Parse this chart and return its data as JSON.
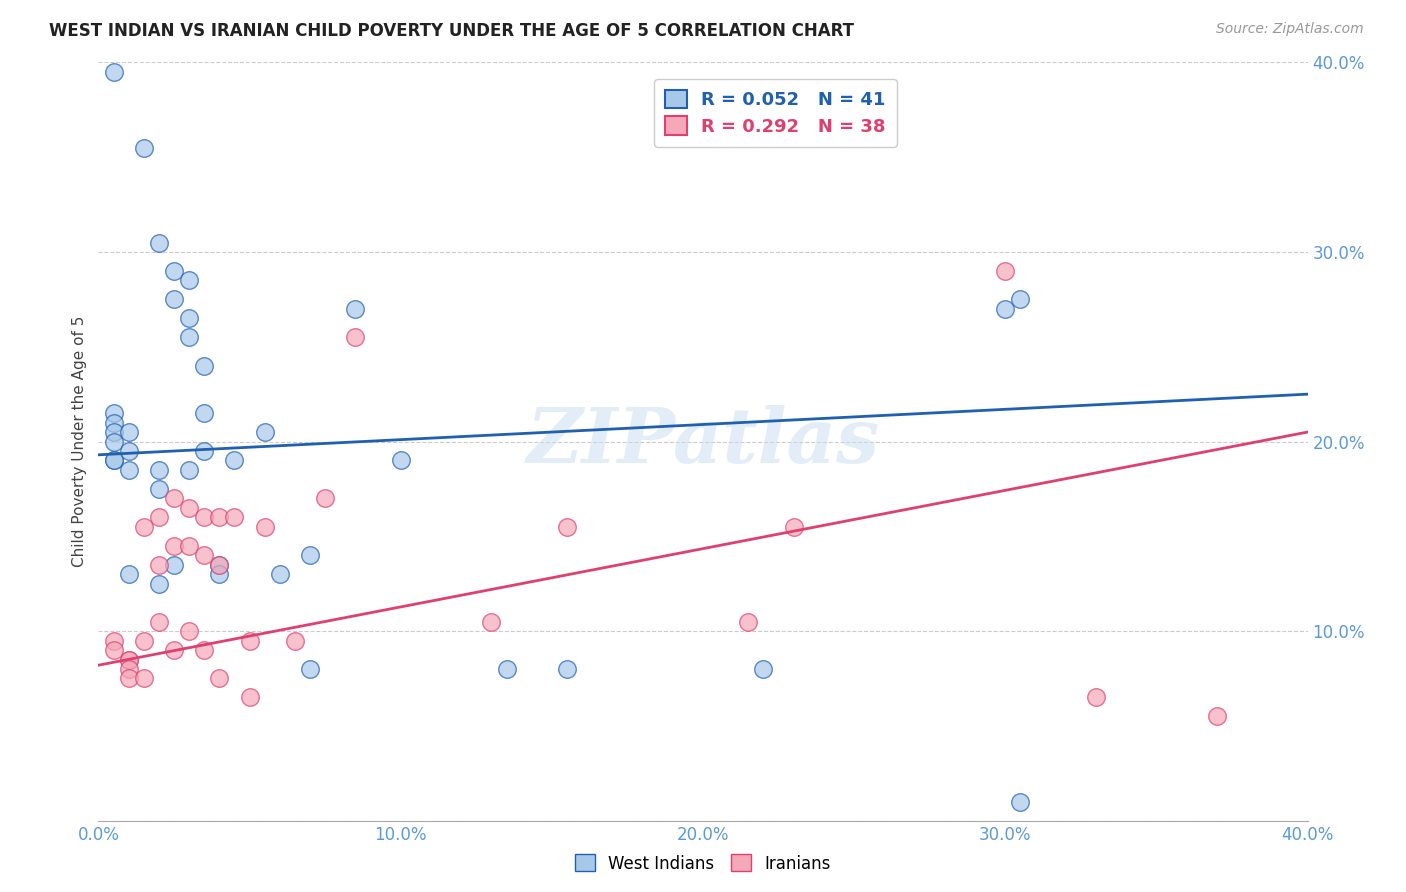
{
  "title": "WEST INDIAN VS IRANIAN CHILD POVERTY UNDER THE AGE OF 5 CORRELATION CHART",
  "source": "Source: ZipAtlas.com",
  "ylabel": "Child Poverty Under the Age of 5",
  "xlim": [
    0.0,
    0.4
  ],
  "ylim": [
    0.0,
    0.4
  ],
  "xtick_vals": [
    0.0,
    0.1,
    0.2,
    0.3,
    0.4
  ],
  "ytick_vals": [
    0.0,
    0.1,
    0.2,
    0.3,
    0.4
  ],
  "west_indians_color": "#a8c8ea",
  "iranians_color": "#f4a8b8",
  "west_indians_line_color": "#2060b0",
  "iranians_line_color": "#e04070",
  "background_color": "#ffffff",
  "watermark": "ZIPatlas",
  "west_indians_R": 0.052,
  "west_indians_N": 41,
  "iranians_R": 0.292,
  "iranians_N": 38,
  "wi_line_x0": 0.0,
  "wi_line_y0": 0.193,
  "wi_line_x1": 0.4,
  "wi_line_y1": 0.225,
  "ir_line_x0": 0.0,
  "ir_line_y0": 0.082,
  "ir_line_x1": 0.4,
  "ir_line_y1": 0.205,
  "west_indians_x": [
    0.005,
    0.015,
    0.02,
    0.025,
    0.025,
    0.03,
    0.03,
    0.03,
    0.035,
    0.035,
    0.005,
    0.005,
    0.005,
    0.005,
    0.005,
    0.005,
    0.01,
    0.01,
    0.01,
    0.01,
    0.02,
    0.02,
    0.02,
    0.025,
    0.03,
    0.035,
    0.04,
    0.04,
    0.045,
    0.055,
    0.06,
    0.07,
    0.07,
    0.085,
    0.1,
    0.135,
    0.155,
    0.22,
    0.3,
    0.305,
    0.305
  ],
  "west_indians_y": [
    0.395,
    0.355,
    0.305,
    0.29,
    0.275,
    0.285,
    0.265,
    0.255,
    0.24,
    0.215,
    0.215,
    0.21,
    0.205,
    0.2,
    0.19,
    0.19,
    0.205,
    0.195,
    0.185,
    0.13,
    0.185,
    0.175,
    0.125,
    0.135,
    0.185,
    0.195,
    0.135,
    0.13,
    0.19,
    0.205,
    0.13,
    0.14,
    0.08,
    0.27,
    0.19,
    0.08,
    0.08,
    0.08,
    0.27,
    0.275,
    0.01
  ],
  "iranians_x": [
    0.005,
    0.005,
    0.01,
    0.01,
    0.01,
    0.01,
    0.015,
    0.015,
    0.015,
    0.02,
    0.02,
    0.02,
    0.025,
    0.025,
    0.025,
    0.03,
    0.03,
    0.03,
    0.035,
    0.035,
    0.035,
    0.04,
    0.04,
    0.04,
    0.045,
    0.05,
    0.05,
    0.055,
    0.065,
    0.075,
    0.085,
    0.13,
    0.155,
    0.215,
    0.23,
    0.3,
    0.33,
    0.37
  ],
  "iranians_y": [
    0.095,
    0.09,
    0.085,
    0.085,
    0.08,
    0.075,
    0.155,
    0.095,
    0.075,
    0.16,
    0.135,
    0.105,
    0.17,
    0.145,
    0.09,
    0.165,
    0.145,
    0.1,
    0.16,
    0.14,
    0.09,
    0.16,
    0.135,
    0.075,
    0.16,
    0.095,
    0.065,
    0.155,
    0.095,
    0.17,
    0.255,
    0.105,
    0.155,
    0.105,
    0.155,
    0.29,
    0.065,
    0.055
  ]
}
